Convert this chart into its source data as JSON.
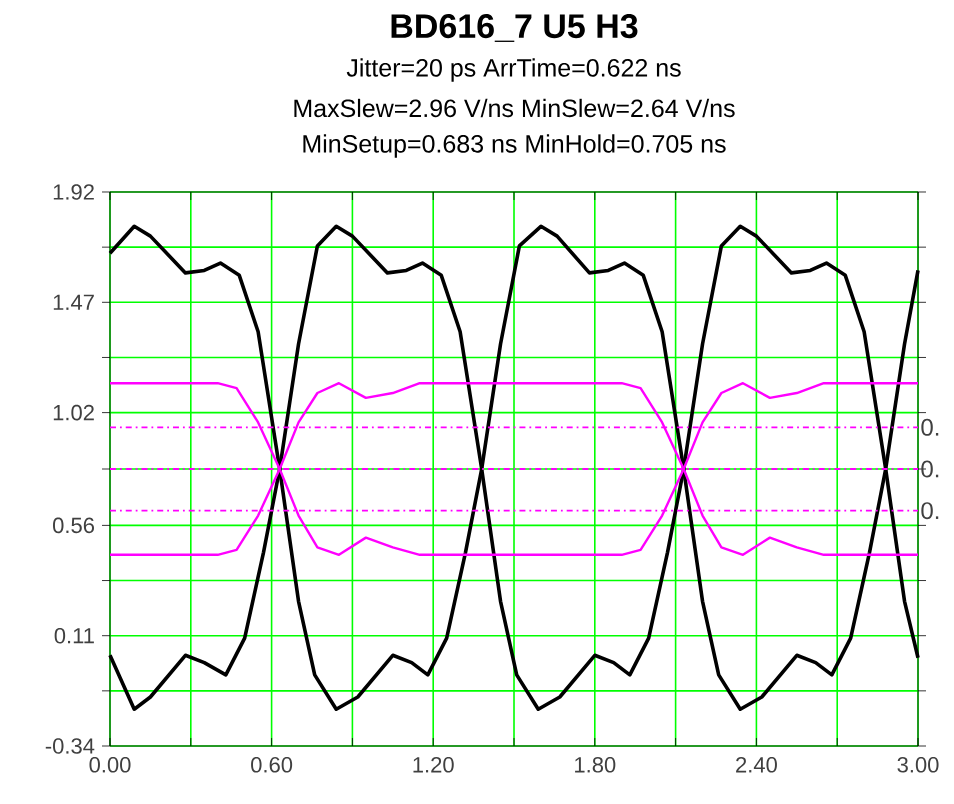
{
  "chart_data": {
    "type": "line",
    "title": "BD616_7 U5 H3",
    "subtitle": "Jitter=20 ps  ArrTime=0.622 ns",
    "annotations": [
      "MaxSlew=2.96 V/ns  MinSlew=2.64 V/ns",
      "MinSetup=0.683 ns  MinHold=0.705 ns",
      "0.",
      "0.",
      "0."
    ],
    "series": [
      {
        "color": "#000000",
        "x": [
          0,
          0.09,
          0.15,
          0.28,
          0.35,
          0.41,
          0.48,
          0.55,
          0.63,
          0.7,
          0.76,
          0.84,
          0.92,
          1.05,
          1.12,
          1.18,
          1.25,
          1.32,
          1.38,
          1.45,
          1.52,
          1.6,
          1.66,
          1.78,
          1.85,
          1.91,
          1.98,
          2.05,
          2.13,
          2.2,
          2.26,
          2.34,
          2.42,
          2.55,
          2.62,
          2.68,
          2.75,
          2.82,
          2.88,
          2.95,
          3.0
        ],
        "values": [
          1.67,
          1.78,
          1.74,
          1.59,
          1.6,
          1.63,
          1.58,
          1.35,
          0.79,
          0.25,
          -0.05,
          -0.19,
          -0.14,
          0.03,
          0.0,
          -0.05,
          0.1,
          0.45,
          0.79,
          1.3,
          1.7,
          1.78,
          1.74,
          1.59,
          1.6,
          1.63,
          1.58,
          1.35,
          0.79,
          0.25,
          -0.05,
          -0.19,
          -0.14,
          0.03,
          0.0,
          -0.05,
          0.1,
          0.45,
          0.79,
          1.3,
          1.6
        ]
      },
      {
        "color": "#000000",
        "x": [
          0,
          0.09,
          0.15,
          0.28,
          0.35,
          0.43,
          0.5,
          0.57,
          0.63,
          0.7,
          0.77,
          0.84,
          0.9,
          1.03,
          1.1,
          1.16,
          1.23,
          1.3,
          1.38,
          1.45,
          1.51,
          1.59,
          1.67,
          1.8,
          1.87,
          1.93,
          2.0,
          2.07,
          2.13,
          2.2,
          2.27,
          2.34,
          2.4,
          2.53,
          2.6,
          2.66,
          2.73,
          2.8,
          2.88,
          2.95,
          3.0
        ],
        "values": [
          0.03,
          -0.19,
          -0.14,
          0.03,
          0.0,
          -0.05,
          0.1,
          0.45,
          0.79,
          1.3,
          1.7,
          1.78,
          1.74,
          1.59,
          1.6,
          1.63,
          1.58,
          1.35,
          0.79,
          0.25,
          -0.05,
          -0.19,
          -0.14,
          0.03,
          0.0,
          -0.05,
          0.1,
          0.45,
          0.79,
          1.3,
          1.7,
          1.78,
          1.74,
          1.59,
          1.6,
          1.63,
          1.58,
          1.35,
          0.79,
          0.25,
          0.02
        ]
      },
      {
        "color": "#ff00ff",
        "x": [
          0,
          0.4,
          0.47,
          0.55,
          0.63,
          0.7,
          0.77,
          0.85,
          0.95,
          1.05,
          1.15,
          1.5,
          1.9,
          1.97,
          2.05,
          2.13,
          2.2,
          2.27,
          2.35,
          2.45,
          2.55,
          2.65,
          3.0
        ],
        "values": [
          1.14,
          1.14,
          1.12,
          0.98,
          0.79,
          0.6,
          0.47,
          0.44,
          0.51,
          0.47,
          0.44,
          0.44,
          0.44,
          0.46,
          0.6,
          0.79,
          0.98,
          1.1,
          1.14,
          1.08,
          1.1,
          1.14,
          1.14
        ]
      },
      {
        "color": "#ff00ff",
        "x": [
          0,
          0.4,
          0.47,
          0.55,
          0.63,
          0.7,
          0.77,
          0.85,
          0.95,
          1.05,
          1.15,
          1.5,
          1.9,
          1.97,
          2.05,
          2.13,
          2.2,
          2.27,
          2.35,
          2.45,
          2.55,
          2.65,
          3.0
        ],
        "values": [
          0.44,
          0.44,
          0.46,
          0.6,
          0.79,
          0.98,
          1.1,
          1.14,
          1.08,
          1.1,
          1.14,
          1.14,
          1.14,
          1.12,
          0.98,
          0.79,
          0.6,
          0.47,
          0.44,
          0.51,
          0.47,
          0.44,
          0.44
        ]
      }
    ],
    "ref_lines": [
      {
        "axis": "y",
        "value": 0.96,
        "color": "#ff00ff",
        "line_style": "dashdot"
      },
      {
        "axis": "y",
        "value": 0.79,
        "color": "#ff00ff",
        "line_style": "dashdot"
      },
      {
        "axis": "y",
        "value": 0.62,
        "color": "#ff00ff",
        "line_style": "dashdot"
      }
    ],
    "xlim": [
      0,
      3.0
    ],
    "ylim": [
      -0.34,
      1.92
    ],
    "xticks": [
      {
        "value": 0,
        "label": "0.00"
      },
      {
        "value": 0.3,
        "label": null
      },
      {
        "value": 0.6,
        "label": "0.60"
      },
      {
        "value": 0.9,
        "label": null
      },
      {
        "value": 1.2,
        "label": "1.20"
      },
      {
        "value": 1.5,
        "label": null
      },
      {
        "value": 1.8,
        "label": "1.80"
      },
      {
        "value": 2.1,
        "label": null
      },
      {
        "value": 2.4,
        "label": "2.40"
      },
      {
        "value": 2.7,
        "label": null
      },
      {
        "value": 3.0,
        "label": "3.00"
      }
    ],
    "yticks": [
      -0.34,
      {
        "value": -0.115,
        "label": null
      },
      0.11,
      {
        "value": 0.335,
        "label": null
      },
      0.56,
      {
        "value": 0.79,
        "label": null
      },
      1.02,
      {
        "value": 1.245,
        "label": null
      },
      1.47,
      {
        "value": 1.695,
        "label": null
      },
      1.92
    ],
    "grid": true,
    "line_style": "solid"
  }
}
